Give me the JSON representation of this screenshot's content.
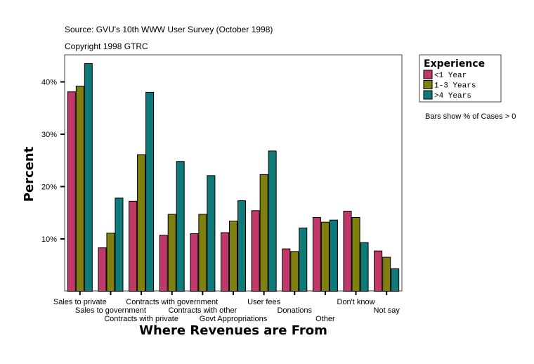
{
  "header": {
    "source": "Source: GVU's 10th WWW User Survey (October 1998)",
    "copyright": "Copyright 1998 GTRC"
  },
  "chart_data": {
    "type": "bar",
    "title": "",
    "xlabel": "Where Revenues are From",
    "ylabel": "Percent",
    "ylim": [
      0,
      45
    ],
    "yticks": [
      10,
      20,
      30,
      40
    ],
    "ytick_labels": [
      "10%",
      "20%",
      "30%",
      "40%"
    ],
    "grid": false,
    "legend": {
      "title": "Experience",
      "placement": "right"
    },
    "note": "Bars show % of Cases > 0",
    "categories": [
      "Sales to private",
      "Sales to government",
      "Contracts with private",
      "Contracts with government",
      "Contracts with other",
      "Govt Appropriations",
      "User fees",
      "Donations",
      "Other",
      "Don't know",
      "Not say"
    ],
    "series": [
      {
        "name": "<1 Year",
        "color": "#C0396A",
        "values": [
          38.1,
          8.3,
          17.2,
          10.7,
          11.0,
          11.2,
          15.4,
          8.1,
          14.1,
          15.3,
          7.7
        ]
      },
      {
        "name": "1-3 Years",
        "color": "#808010",
        "values": [
          39.2,
          11.1,
          26.1,
          14.7,
          14.7,
          13.4,
          22.3,
          7.6,
          13.2,
          14.1,
          6.5
        ]
      },
      {
        "name": ">4 Years",
        "color": "#0E7A7A",
        "values": [
          43.5,
          17.8,
          38.0,
          24.8,
          22.1,
          17.3,
          26.8,
          12.1,
          13.6,
          9.3,
          4.3
        ]
      }
    ]
  }
}
